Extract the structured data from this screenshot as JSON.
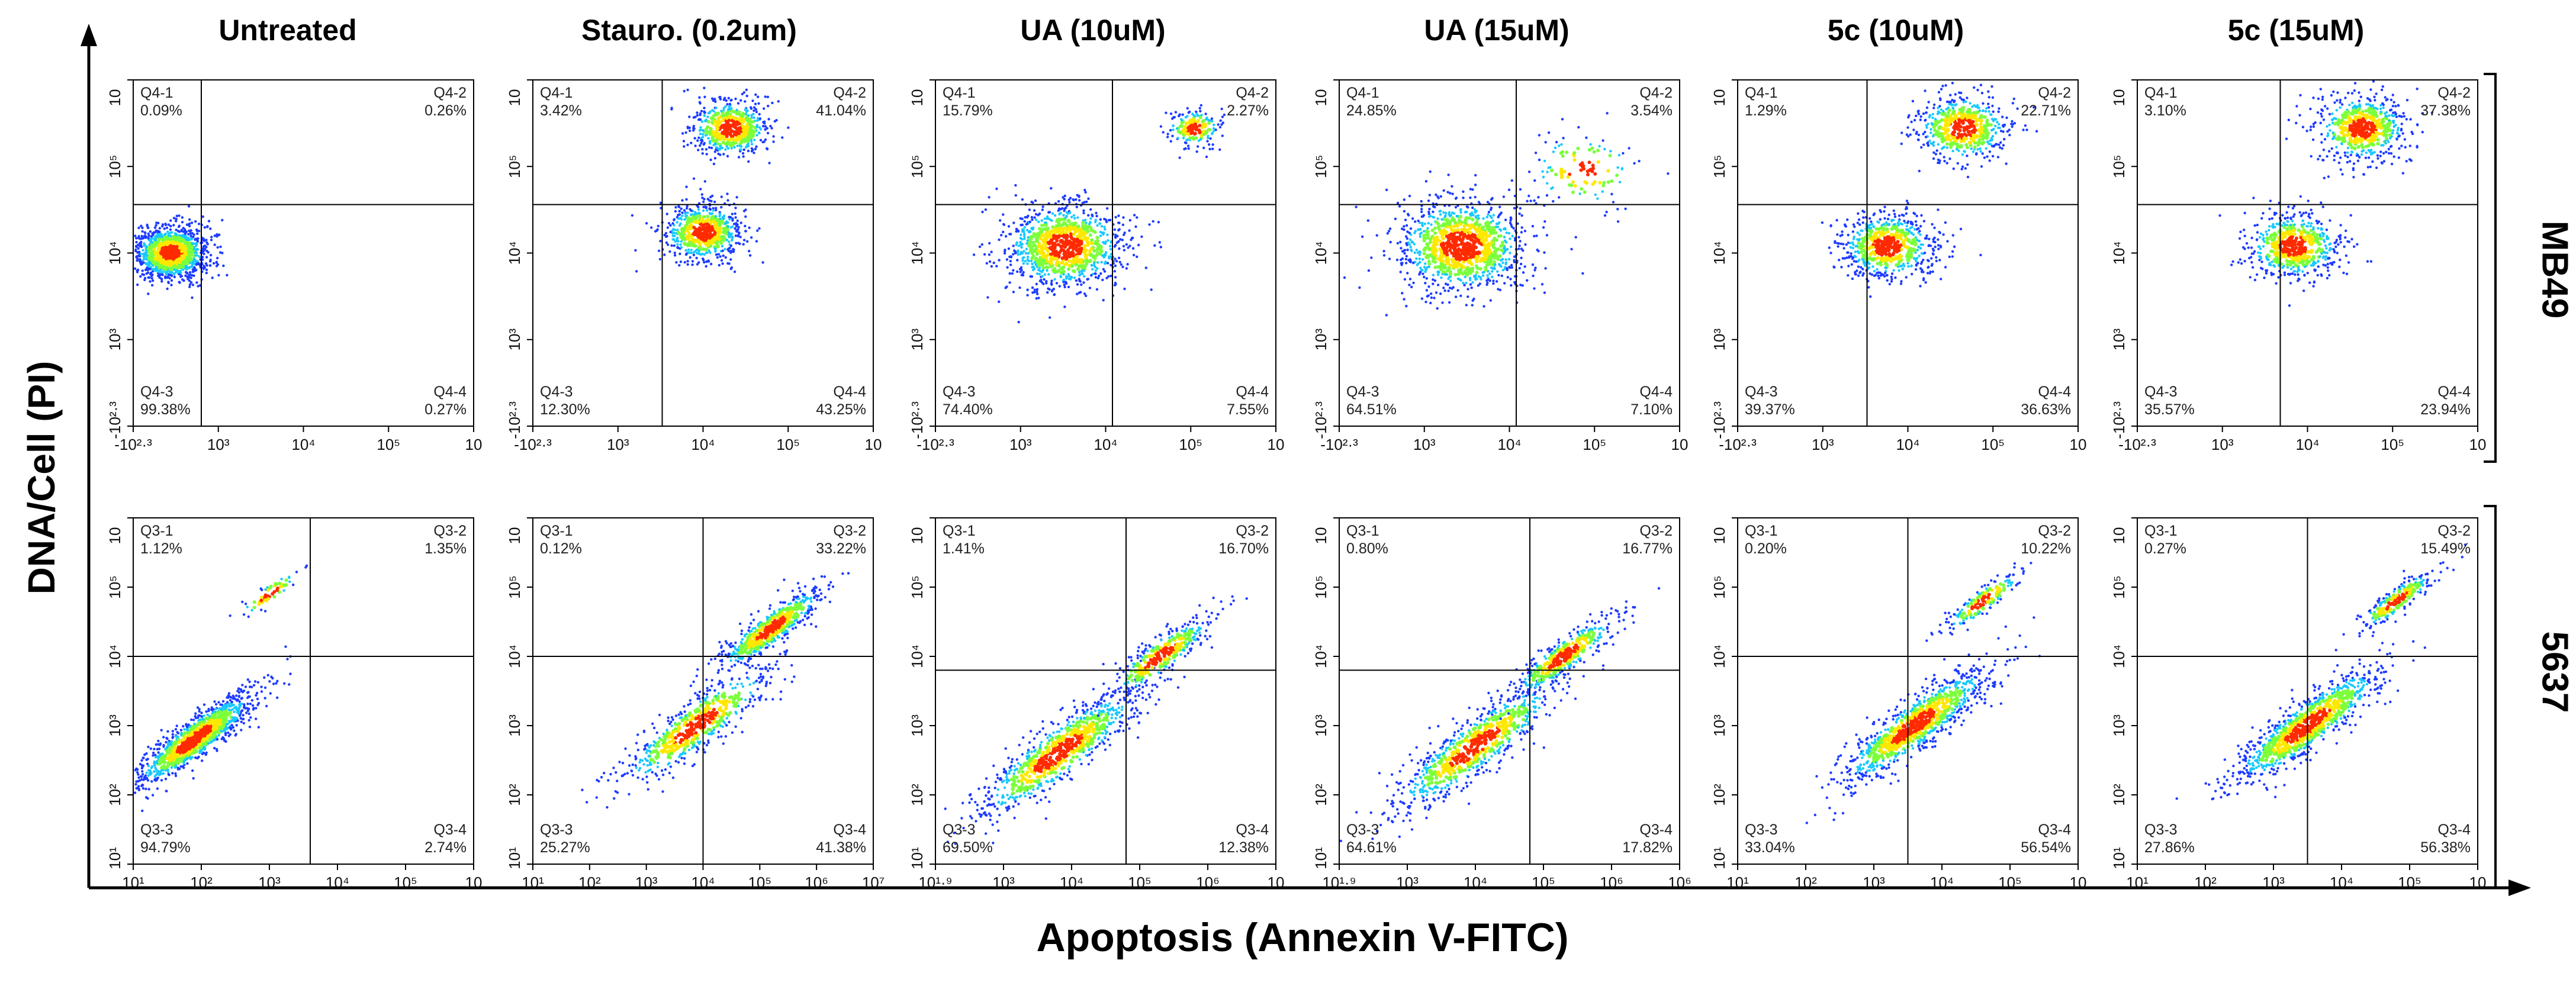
{
  "figure": {
    "y_axis_title": "DNA/Cell (PI)",
    "x_axis_title": "Apoptosis (Annexin V-FITC)",
    "columns": [
      "Untreated",
      "Stauro. (0.2um)",
      "UA (10uM)",
      "UA (15uM)",
      "5c (10uM)",
      "5c (15uM)"
    ],
    "rows": [
      "MB49",
      "5637"
    ]
  },
  "chart_data": [
    {
      "type": "scatter",
      "row": "MB49",
      "column": "Untreated",
      "quadrants": [
        {
          "id": "Q4-1",
          "value": "0.09%"
        },
        {
          "id": "Q4-2",
          "value": "0.26%"
        },
        {
          "id": "Q4-3",
          "value": "99.38%"
        },
        {
          "id": "Q4-4",
          "value": "0.27%"
        }
      ],
      "x_ticks": [
        "-10²·³",
        "10³",
        "10⁴",
        "10⁵",
        "10"
      ],
      "y_ticks": [
        "10",
        "10⁵",
        "10⁴",
        "10³",
        "-10²·³"
      ],
      "x_gate": 1.0,
      "y_gate": 3.2,
      "clusters": [
        {
          "x": 0.55,
          "y": 2.5,
          "spread": 0.28,
          "weight": 1.0
        }
      ]
    },
    {
      "type": "scatter",
      "row": "MB49",
      "column": "Stauro. (0.2um)",
      "quadrants": [
        {
          "id": "Q4-1",
          "value": "3.42%"
        },
        {
          "id": "Q4-2",
          "value": "41.04%"
        },
        {
          "id": "Q4-3",
          "value": "12.30%"
        },
        {
          "id": "Q4-4",
          "value": "43.25%"
        }
      ],
      "x_ticks": [
        "-10²·³",
        "10³",
        "10⁴",
        "10⁵",
        "10"
      ],
      "y_ticks": [
        "10",
        "10⁵",
        "10⁴",
        "10³",
        "-10²·³"
      ],
      "x_gate": 1.9,
      "y_gate": 3.2,
      "clusters": [
        {
          "x": 2.5,
          "y": 2.8,
          "spread": 0.3,
          "weight": 0.55
        },
        {
          "x": 2.9,
          "y": 4.3,
          "spread": 0.3,
          "weight": 0.45
        }
      ]
    },
    {
      "type": "scatter",
      "row": "MB49",
      "column": "UA (10uM)",
      "quadrants": [
        {
          "id": "Q4-1",
          "value": "15.79%"
        },
        {
          "id": "Q4-2",
          "value": "2.27%"
        },
        {
          "id": "Q4-3",
          "value": "74.40%"
        },
        {
          "id": "Q4-4",
          "value": "7.55%"
        }
      ],
      "x_ticks": [
        "-10²·³",
        "10³",
        "10⁴",
        "10⁵",
        "10"
      ],
      "y_ticks": [
        "10",
        "10⁵",
        "10⁴",
        "10³",
        "-10²·³"
      ],
      "x_gate": 2.6,
      "y_gate": 3.2,
      "clusters": [
        {
          "x": 1.9,
          "y": 2.6,
          "spread": 0.45,
          "weight": 0.85
        },
        {
          "x": 3.8,
          "y": 4.3,
          "spread": 0.2,
          "weight": 0.15
        }
      ]
    },
    {
      "type": "scatter",
      "row": "MB49",
      "column": "UA (15uM)",
      "quadrants": [
        {
          "id": "Q4-1",
          "value": "24.85%"
        },
        {
          "id": "Q4-2",
          "value": "3.54%"
        },
        {
          "id": "Q4-3",
          "value": "64.51%"
        },
        {
          "id": "Q4-4",
          "value": "7.10%"
        }
      ],
      "x_ticks": [
        "-10²·³",
        "10³",
        "10⁴",
        "10⁵",
        "10"
      ],
      "y_ticks": [
        "10",
        "10⁵",
        "10⁴",
        "10³",
        "-10²·³"
      ],
      "x_gate": 2.6,
      "y_gate": 3.2,
      "clusters": [
        {
          "x": 1.8,
          "y": 2.6,
          "spread": 0.5,
          "weight": 0.9
        },
        {
          "x": 3.6,
          "y": 3.7,
          "spread": 0.4,
          "weight": 0.1
        }
      ]
    },
    {
      "type": "scatter",
      "row": "MB49",
      "column": "5c (10uM)",
      "quadrants": [
        {
          "id": "Q4-1",
          "value": "1.29%"
        },
        {
          "id": "Q4-2",
          "value": "22.71%"
        },
        {
          "id": "Q4-3",
          "value": "39.37%"
        },
        {
          "id": "Q4-4",
          "value": "36.63%"
        }
      ],
      "x_ticks": [
        "-10²·³",
        "10³",
        "10⁴",
        "10⁵",
        "10"
      ],
      "y_ticks": [
        "10",
        "10⁵",
        "10⁴",
        "10³",
        "-10²·³"
      ],
      "x_gate": 1.9,
      "y_gate": 3.2,
      "clusters": [
        {
          "x": 2.2,
          "y": 2.6,
          "spread": 0.35,
          "weight": 0.55
        },
        {
          "x": 3.3,
          "y": 4.3,
          "spread": 0.35,
          "weight": 0.45
        }
      ]
    },
    {
      "type": "scatter",
      "row": "MB49",
      "column": "5c (15uM)",
      "quadrants": [
        {
          "id": "Q4-1",
          "value": "3.10%"
        },
        {
          "id": "Q4-2",
          "value": "37.38%"
        },
        {
          "id": "Q4-3",
          "value": "35.57%"
        },
        {
          "id": "Q4-4",
          "value": "23.94%"
        }
      ],
      "x_ticks": [
        "-10²·³",
        "10³",
        "10⁴",
        "10⁵",
        "10"
      ],
      "y_ticks": [
        "10",
        "10⁵",
        "10⁴",
        "10³",
        "-10²·³"
      ],
      "x_gate": 2.1,
      "y_gate": 3.2,
      "clusters": [
        {
          "x": 2.3,
          "y": 2.6,
          "spread": 0.35,
          "weight": 0.5
        },
        {
          "x": 3.3,
          "y": 4.3,
          "spread": 0.35,
          "weight": 0.5
        }
      ]
    },
    {
      "type": "scatter",
      "row": "5637",
      "column": "Untreated",
      "quadrants": [
        {
          "id": "Q3-1",
          "value": "1.12%"
        },
        {
          "id": "Q3-2",
          "value": "1.35%"
        },
        {
          "id": "Q3-3",
          "value": "94.79%"
        },
        {
          "id": "Q3-4",
          "value": "2.74%"
        }
      ],
      "x_ticks": [
        "10¹",
        "10²",
        "10³",
        "10⁴",
        "10⁵",
        "10"
      ],
      "y_ticks": [
        "10",
        "10⁵",
        "10⁴",
        "10³",
        "10²",
        "10¹"
      ],
      "x_gate": 2.6,
      "y_gate": 3.0,
      "clusters": [
        {
          "x": 0.9,
          "y": 1.8,
          "spread": 0.4,
          "weight": 0.95
        },
        {
          "x": 2.0,
          "y": 3.9,
          "spread": 0.2,
          "weight": 0.05
        }
      ]
    },
    {
      "type": "scatter",
      "row": "5637",
      "column": "Stauro. (0.2um)",
      "quadrants": [
        {
          "id": "Q3-1",
          "value": "0.12%"
        },
        {
          "id": "Q3-2",
          "value": "33.22%"
        },
        {
          "id": "Q3-3",
          "value": "25.27%"
        },
        {
          "id": "Q3-4",
          "value": "41.38%"
        }
      ],
      "x_ticks": [
        "10¹",
        "10²",
        "10³",
        "10⁴",
        "10⁵",
        "10⁶",
        "10⁷"
      ],
      "y_ticks": [
        "10",
        "10⁵",
        "10⁴",
        "10³",
        "10²",
        "10¹"
      ],
      "x_gate": 2.5,
      "y_gate": 3.0,
      "clusters": [
        {
          "x": 2.4,
          "y": 2.0,
          "spread": 0.5,
          "weight": 0.5
        },
        {
          "x": 3.5,
          "y": 3.4,
          "spread": 0.35,
          "weight": 0.5
        }
      ]
    },
    {
      "type": "scatter",
      "row": "5637",
      "column": "UA (10uM)",
      "quadrants": [
        {
          "id": "Q3-1",
          "value": "1.41%"
        },
        {
          "id": "Q3-2",
          "value": "16.70%"
        },
        {
          "id": "Q3-3",
          "value": "69.50%"
        },
        {
          "id": "Q3-4",
          "value": "12.38%"
        }
      ],
      "x_ticks": [
        "10¹·⁹",
        "10³",
        "10⁴",
        "10⁵",
        "10⁶",
        "10"
      ],
      "y_ticks": [
        "10",
        "10⁵",
        "10⁴",
        "10³",
        "10²",
        "10¹"
      ],
      "x_gate": 2.8,
      "y_gate": 2.8,
      "clusters": [
        {
          "x": 1.8,
          "y": 1.6,
          "spread": 0.55,
          "weight": 0.7
        },
        {
          "x": 3.3,
          "y": 3.0,
          "spread": 0.35,
          "weight": 0.3
        }
      ]
    },
    {
      "type": "scatter",
      "row": "5637",
      "column": "UA (15uM)",
      "quadrants": [
        {
          "id": "Q3-1",
          "value": "0.80%"
        },
        {
          "id": "Q3-2",
          "value": "16.77%"
        },
        {
          "id": "Q3-3",
          "value": "64.61%"
        },
        {
          "id": "Q3-4",
          "value": "17.82%"
        }
      ],
      "x_ticks": [
        "10¹·⁹",
        "10³",
        "10⁴",
        "10⁵",
        "10⁶",
        "10⁶"
      ],
      "y_ticks": [
        "10",
        "10⁵",
        "10⁴",
        "10³",
        "10²",
        "10¹"
      ],
      "x_gate": 2.8,
      "y_gate": 2.8,
      "clusters": [
        {
          "x": 2.0,
          "y": 1.7,
          "spread": 0.55,
          "weight": 0.65
        },
        {
          "x": 3.3,
          "y": 3.0,
          "spread": 0.35,
          "weight": 0.35
        }
      ]
    },
    {
      "type": "scatter",
      "row": "5637",
      "column": "5c (10uM)",
      "quadrants": [
        {
          "id": "Q3-1",
          "value": "0.20%"
        },
        {
          "id": "Q3-2",
          "value": "10.22%"
        },
        {
          "id": "Q3-3",
          "value": "33.04%"
        },
        {
          "id": "Q3-4",
          "value": "56.54%"
        }
      ],
      "x_ticks": [
        "10¹",
        "10²",
        "10³",
        "10⁴",
        "10⁵",
        "10"
      ],
      "y_ticks": [
        "10",
        "10⁵",
        "10⁴",
        "10³",
        "10²",
        "10¹"
      ],
      "x_gate": 2.5,
      "y_gate": 3.0,
      "clusters": [
        {
          "x": 2.6,
          "y": 2.0,
          "spread": 0.5,
          "weight": 0.85
        },
        {
          "x": 3.6,
          "y": 3.8,
          "spread": 0.25,
          "weight": 0.15
        }
      ]
    },
    {
      "type": "scatter",
      "row": "5637",
      "column": "5c (15uM)",
      "quadrants": [
        {
          "id": "Q3-1",
          "value": "0.27%"
        },
        {
          "id": "Q3-2",
          "value": "15.49%"
        },
        {
          "id": "Q3-3",
          "value": "27.86%"
        },
        {
          "id": "Q3-4",
          "value": "56.38%"
        }
      ],
      "x_ticks": [
        "10¹",
        "10²",
        "10³",
        "10⁴",
        "10⁵",
        "10"
      ],
      "y_ticks": [
        "10",
        "10⁵",
        "10⁴",
        "10³",
        "10²",
        "10¹"
      ],
      "x_gate": 2.5,
      "y_gate": 3.0,
      "clusters": [
        {
          "x": 2.5,
          "y": 2.0,
          "spread": 0.5,
          "weight": 0.8
        },
        {
          "x": 3.8,
          "y": 3.8,
          "spread": 0.25,
          "weight": 0.2
        }
      ]
    }
  ],
  "colors": {
    "low": "#1e3cff",
    "mid": "#18c8ff",
    "mid2": "#7cff3c",
    "high": "#ffe800",
    "peak": "#ff2a00",
    "axis": "#000000"
  }
}
